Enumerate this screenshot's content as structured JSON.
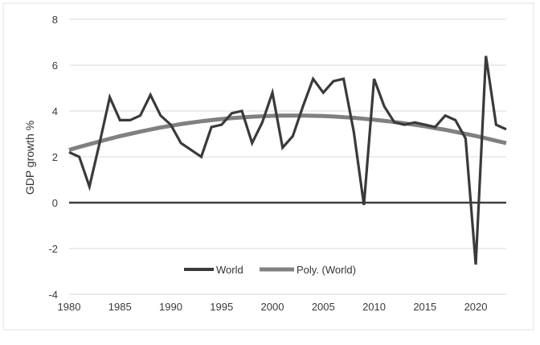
{
  "chart_data": {
    "type": "line",
    "title": "",
    "xlabel": "",
    "ylabel": "GDP growth %",
    "xlim": [
      1980,
      2023
    ],
    "ylim": [
      -4,
      8
    ],
    "x_ticks": [
      1980,
      1985,
      1990,
      1995,
      2000,
      2005,
      2010,
      2015,
      2020
    ],
    "y_ticks": [
      -4,
      -2,
      0,
      2,
      4,
      6,
      8
    ],
    "grid": "horizontal",
    "legend_position": "bottom-center",
    "x": [
      1980,
      1981,
      1982,
      1983,
      1984,
      1985,
      1986,
      1987,
      1988,
      1989,
      1990,
      1991,
      1992,
      1993,
      1994,
      1995,
      1996,
      1997,
      1998,
      1999,
      2000,
      2001,
      2002,
      2003,
      2004,
      2005,
      2006,
      2007,
      2008,
      2009,
      2010,
      2011,
      2012,
      2013,
      2014,
      2015,
      2016,
      2017,
      2018,
      2019,
      2020,
      2021,
      2022,
      2023
    ],
    "series": [
      {
        "name": "World",
        "color": "#3a3a3a",
        "values": [
          2.2,
          2.0,
          0.7,
          2.6,
          4.6,
          3.6,
          3.6,
          3.8,
          4.7,
          3.8,
          3.4,
          2.6,
          2.3,
          2.0,
          3.3,
          3.4,
          3.9,
          4.0,
          2.6,
          3.5,
          4.8,
          2.4,
          2.9,
          4.2,
          5.4,
          4.8,
          5.3,
          5.4,
          3.1,
          -0.1,
          5.4,
          4.2,
          3.5,
          3.4,
          3.5,
          3.4,
          3.3,
          3.8,
          3.6,
          2.8,
          -2.7,
          6.4,
          3.4,
          3.2
        ]
      },
      {
        "name": "Poly. (World)",
        "color": "#808080",
        "values": [
          2.3,
          2.43,
          2.55,
          2.67,
          2.79,
          2.9,
          3.0,
          3.1,
          3.19,
          3.28,
          3.35,
          3.43,
          3.49,
          3.55,
          3.6,
          3.65,
          3.69,
          3.72,
          3.75,
          3.77,
          3.79,
          3.8,
          3.8,
          3.8,
          3.79,
          3.78,
          3.76,
          3.73,
          3.7,
          3.66,
          3.62,
          3.57,
          3.52,
          3.46,
          3.4,
          3.33,
          3.25,
          3.18,
          3.09,
          3.0,
          2.91,
          2.81,
          2.7,
          2.6
        ]
      }
    ],
    "zero_line_color": "#3f3f3f",
    "gridline_color": "#d9d9d9"
  }
}
